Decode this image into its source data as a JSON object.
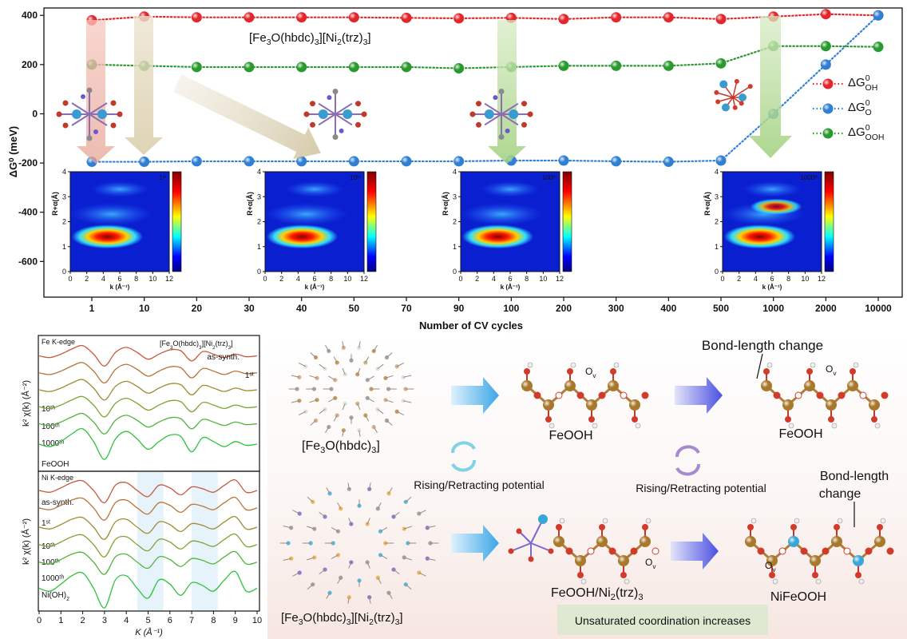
{
  "chart_data": [
    {
      "type": "line",
      "xlabel": "Number of CV cycles",
      "ylabel": "ΔG⁰ (meV)",
      "categories": [
        "1",
        "10",
        "20",
        "30",
        "40",
        "50",
        "70",
        "90",
        "100",
        "200",
        "300",
        "400",
        "500",
        "1000",
        "2000",
        "10000"
      ],
      "ylim": [
        -745,
        430
      ],
      "yticks": [
        -600,
        -400,
        -200,
        0,
        200,
        400
      ],
      "legend": "upper right",
      "line_style": "dotted",
      "annotation": [
        "[Fe",
        "3",
        "O(hbdc)",
        "3",
        "][Ni",
        "2",
        "(trz)",
        "3",
        "]"
      ],
      "series": [
        {
          "name": "ΔG",
          "name_sup": "0",
          "name_sub": "OH",
          "color": "#e3262b",
          "values": [
            380,
            395,
            392,
            392,
            392,
            392,
            390,
            388,
            390,
            385,
            392,
            392,
            385,
            395,
            405,
            400
          ]
        },
        {
          "name": "ΔG",
          "name_sup": "0",
          "name_sub": "O",
          "color": "#2f7fd4",
          "values": [
            -195,
            -195,
            -193,
            -193,
            -193,
            -193,
            -193,
            -193,
            -190,
            -190,
            -193,
            -195,
            -190,
            0,
            200,
            400
          ]
        },
        {
          "name": "ΔG",
          "name_sup": "0",
          "name_sub": "OOH",
          "color": "#2a9a2f",
          "values": [
            200,
            195,
            190,
            190,
            190,
            190,
            190,
            185,
            190,
            195,
            195,
            195,
            205,
            275,
            275,
            272
          ]
        }
      ],
      "insets": {
        "xlabel": "k (Å⁻¹)",
        "ylabel": "R+α(Å)",
        "xlim": [
          0,
          12
        ],
        "ylim": [
          0,
          4
        ],
        "xticks": [
          0,
          2,
          4,
          6,
          8,
          10,
          12
        ],
        "yticks": [
          0,
          1,
          2,
          3,
          4
        ],
        "labels": [
          "1ˢᵗ",
          "10ᵗʰ",
          "100ᵗʰ",
          "1000ᵗʰ"
        ]
      }
    },
    {
      "type": "line",
      "title": "Fe K-edge",
      "ylabel": "k² χ(k) (Å⁻²)",
      "annotation": [
        "[Fe",
        "3",
        "O(hbdc)",
        "3",
        "][Ni",
        "2",
        "(trz)",
        "3",
        "]"
      ],
      "x": [
        0,
        0.5,
        1,
        1.5,
        2,
        2.5,
        3,
        3.5,
        4,
        4.5,
        5,
        5.5,
        6,
        6.5,
        7,
        7.5,
        8,
        8.5,
        9,
        9.5,
        10
      ],
      "xlim": [
        0,
        10
      ],
      "ylim": [
        0,
        8
      ],
      "series": [
        {
          "name": "as-synth.",
          "color": "#c85a3c",
          "values": [
            6.8,
            6.7,
            6.9,
            7.2,
            7.4,
            6.9,
            6.2,
            7.0,
            7.3,
            7.0,
            6.6,
            6.9,
            7.15,
            7.1,
            6.5,
            7.05,
            6.9,
            6.7,
            6.9,
            6.75,
            6.8
          ]
        },
        {
          "name": "1ˢᵗ",
          "color": "#b7753a",
          "values": [
            5.8,
            5.7,
            5.9,
            6.2,
            6.4,
            5.9,
            5.2,
            6.0,
            6.3,
            6.0,
            5.6,
            5.9,
            6.15,
            6.1,
            5.5,
            6.05,
            5.9,
            5.7,
            5.9,
            5.75,
            5.8
          ]
        },
        {
          "name": "10ᵗʰ",
          "color": "#9d8d2e",
          "values": [
            4.8,
            4.7,
            4.9,
            5.2,
            5.4,
            4.9,
            4.2,
            5.0,
            5.3,
            5.0,
            4.6,
            4.9,
            5.15,
            5.1,
            4.5,
            5.05,
            4.9,
            4.7,
            4.9,
            4.75,
            4.8
          ]
        },
        {
          "name": "100ᵗʰ",
          "color": "#7da430",
          "values": [
            3.8,
            3.7,
            3.9,
            4.2,
            4.4,
            3.9,
            3.2,
            4.0,
            4.3,
            4.0,
            3.6,
            3.9,
            4.15,
            4.1,
            3.5,
            4.05,
            3.9,
            3.7,
            3.9,
            3.75,
            3.8
          ]
        },
        {
          "name": "1000ᵗʰ",
          "color": "#52b43c",
          "values": [
            2.8,
            2.7,
            2.9,
            3.2,
            3.4,
            2.9,
            2.2,
            3.0,
            3.3,
            3.0,
            2.6,
            2.9,
            3.15,
            3.1,
            2.5,
            3.05,
            2.9,
            2.7,
            2.9,
            2.75,
            2.8
          ]
        },
        {
          "name": "FeOOH",
          "color": "#2fc23c",
          "values": [
            1.6,
            1.45,
            1.75,
            2.2,
            2.5,
            1.75,
            0.7,
            1.9,
            2.35,
            1.9,
            1.3,
            1.75,
            2.13,
            2.05,
            1.15,
            1.98,
            1.75,
            1.45,
            1.75,
            1.53,
            1.6
          ]
        }
      ]
    },
    {
      "type": "line",
      "title": "Ni K-edge",
      "ylabel": "k² χ(k) (Å⁻²)",
      "xlabel": "K (Å⁻¹)",
      "x": [
        0,
        0.5,
        1,
        1.5,
        2,
        2.5,
        3,
        3.5,
        4,
        4.5,
        5,
        5.5,
        6,
        6.5,
        7,
        7.5,
        8,
        8.5,
        9,
        9.5,
        10
      ],
      "xlim": [
        0,
        10
      ],
      "ylim": [
        0,
        8
      ],
      "xticks": [
        0,
        1,
        2,
        3,
        4,
        5,
        6,
        7,
        8,
        9,
        10
      ],
      "shaded": [
        [
          4.5,
          5.7
        ],
        [
          7,
          8.2
        ]
      ],
      "series": [
        {
          "name": "as-synth.",
          "color": "#c85a3c",
          "values": [
            6.9,
            6.8,
            7.05,
            7.35,
            7.45,
            6.9,
            6.2,
            7.2,
            7.35,
            6.9,
            6.55,
            7.2,
            7.05,
            6.65,
            7.1,
            7.0,
            6.8,
            7.2,
            7.5,
            6.8,
            6.9
          ]
        },
        {
          "name": "1ˢᵗ",
          "color": "#b7753a",
          "values": [
            5.9,
            5.8,
            6.05,
            6.35,
            6.45,
            5.9,
            5.2,
            6.2,
            6.35,
            5.9,
            5.55,
            6.2,
            6.05,
            5.65,
            6.1,
            6.0,
            5.8,
            6.2,
            6.5,
            5.8,
            5.9
          ]
        },
        {
          "name": "10ᵗʰ",
          "color": "#9d8d2e",
          "values": [
            4.8,
            4.7,
            4.95,
            5.25,
            5.35,
            4.8,
            4.1,
            5.1,
            5.25,
            4.8,
            4.45,
            5.1,
            4.95,
            4.55,
            5.0,
            4.9,
            4.7,
            5.1,
            5.4,
            4.7,
            4.8
          ]
        },
        {
          "name": "100ᵗʰ",
          "color": "#7da430",
          "values": [
            3.8,
            3.7,
            3.95,
            4.25,
            4.35,
            3.8,
            3.1,
            4.1,
            4.25,
            3.8,
            3.45,
            4.1,
            3.95,
            3.55,
            4.0,
            3.9,
            3.7,
            4.1,
            4.4,
            3.7,
            3.8
          ]
        },
        {
          "name": "1000ᵗʰ",
          "color": "#52b43c",
          "values": [
            2.8,
            2.7,
            2.95,
            3.25,
            3.35,
            2.8,
            2.1,
            3.1,
            3.25,
            2.8,
            2.45,
            3.1,
            2.95,
            2.55,
            3.0,
            2.9,
            2.7,
            3.1,
            3.4,
            2.7,
            2.8
          ]
        },
        {
          "name": "Ni(OH)",
          "name_sub": "2",
          "color": "#2fc23c",
          "values": [
            1.3,
            1.14,
            1.54,
            2.02,
            2.18,
            1.3,
            0.18,
            1.78,
            2.02,
            1.3,
            0.74,
            1.78,
            1.54,
            0.9,
            1.62,
            1.46,
            1.14,
            1.78,
            2.26,
            1.14,
            1.3
          ]
        }
      ]
    }
  ],
  "scheme": {
    "fe_mof": [
      "[Fe",
      "3",
      "O(hbdc)",
      "3",
      "]"
    ],
    "feni_mof": [
      "[Fe",
      "3",
      "O(hbdc)",
      "3",
      "][Ni",
      "2",
      "(trz)",
      "3",
      "]"
    ],
    "feooh": "FeOOH",
    "feooh_ni": [
      "FeOOH/Ni",
      "2",
      "(trz)",
      "3"
    ],
    "nifeooh": "NiFeOOH",
    "ov": [
      "O",
      "v"
    ],
    "bond_top": "Bond-length change",
    "bond_bottom": [
      "Bond-length",
      "change"
    ],
    "potential": "Rising/Retracting potential",
    "unsaturated": "Unsaturated coordination increases"
  }
}
